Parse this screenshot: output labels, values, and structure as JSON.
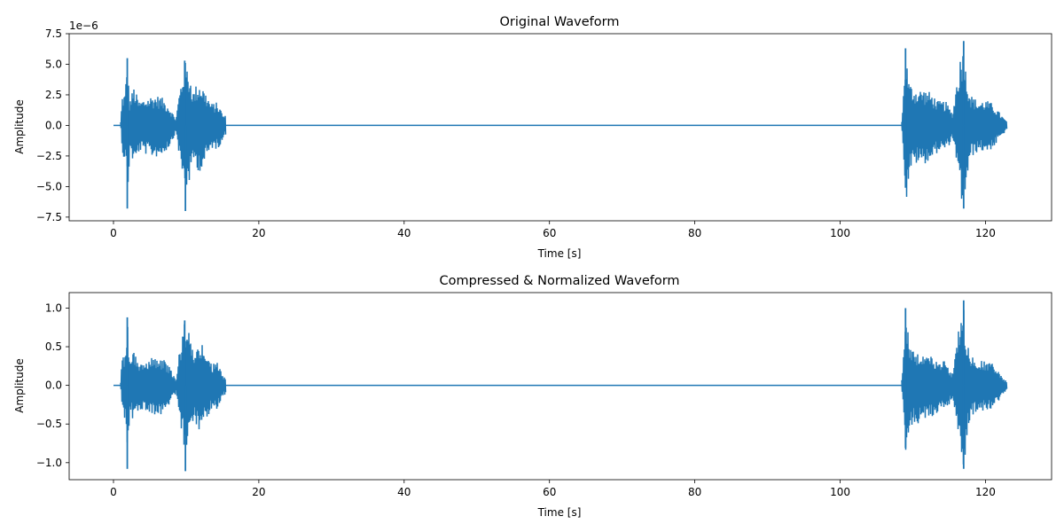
{
  "colors": {
    "series": "#1f77b4",
    "axis": "#000000",
    "background": "#ffffff"
  },
  "chart_data": [
    {
      "type": "line",
      "title": "Original Waveform",
      "xlabel": "Time [s]",
      "ylabel": "Amplitude",
      "y_offset_label": "1e−6",
      "xlim": [
        -6.1,
        129.1
      ],
      "ylim": [
        -7.8,
        7.5
      ],
      "xticks": [
        0,
        20,
        40,
        60,
        80,
        100,
        120
      ],
      "xtick_labels": [
        "0",
        "20",
        "40",
        "60",
        "80",
        "100",
        "120"
      ],
      "yticks": [
        -7.5,
        -5.0,
        -2.5,
        0.0,
        2.5,
        5.0,
        7.5
      ],
      "ytick_labels": [
        "−7.5",
        "−5.0",
        "−2.5",
        "0.0",
        "2.5",
        "5.0",
        "7.5"
      ],
      "grid": false,
      "series": [
        {
          "segments": [
            {
              "x_start": 0.0,
              "x_end": 1.0,
              "amplitude": 0.0
            },
            {
              "x_start": 1.0,
              "x_end": 15.3,
              "envelope": [
                [
                  1.0,
                  0.3
                ],
                [
                  1.2,
                  2.5
                ],
                [
                  1.6,
                  2.7
                ],
                [
                  1.9,
                  5.5
                ],
                [
                  2.2,
                  2.0
                ],
                [
                  2.8,
                  3.2
                ],
                [
                  3.5,
                  2.0
                ],
                [
                  4.5,
                  2.3
                ],
                [
                  5.5,
                  2.5
                ],
                [
                  6.5,
                  2.4
                ],
                [
                  7.5,
                  1.8
                ],
                [
                  8.6,
                  0.5
                ],
                [
                  9.0,
                  2.5
                ],
                [
                  9.5,
                  4.3
                ],
                [
                  9.8,
                  5.3
                ],
                [
                  10.5,
                  4.3
                ],
                [
                  11.0,
                  2.8
                ],
                [
                  11.5,
                  3.5
                ],
                [
                  12.0,
                  3.6
                ],
                [
                  12.7,
                  2.7
                ],
                [
                  13.5,
                  1.8
                ],
                [
                  14.3,
                  1.9
                ],
                [
                  15.2,
                  0.8
                ]
              ],
              "peaks": [
                [
                  1.9,
                  5.5
                ],
                [
                  1.9,
                  -6.8
                ],
                [
                  9.8,
                  5.3
                ],
                [
                  9.9,
                  -7.0
                ]
              ]
            },
            {
              "x_start": 15.3,
              "x_end": 108.5,
              "amplitude": 0.0
            },
            {
              "x_start": 108.5,
              "x_end": 122.8,
              "envelope": [
                [
                  108.5,
                  0.5
                ],
                [
                  108.8,
                  3.5
                ],
                [
                  109.0,
                  6.3
                ],
                [
                  109.5,
                  3.5
                ],
                [
                  110.5,
                  3.0
                ],
                [
                  111.5,
                  3.0
                ],
                [
                  112.5,
                  2.7
                ],
                [
                  113.5,
                  2.0
                ],
                [
                  114.5,
                  2.0
                ],
                [
                  115.5,
                  1.0
                ],
                [
                  116.0,
                  3.5
                ],
                [
                  116.5,
                  5.5
                ],
                [
                  117.0,
                  6.9
                ],
                [
                  117.3,
                  4.5
                ],
                [
                  118.0,
                  2.5
                ],
                [
                  119.0,
                  2.0
                ],
                [
                  120.0,
                  2.1
                ],
                [
                  121.0,
                  1.8
                ],
                [
                  122.0,
                  1.0
                ],
                [
                  122.8,
                  0.4
                ]
              ],
              "peaks": [
                [
                  109.0,
                  6.3
                ],
                [
                  109.0,
                  -5.1
                ],
                [
                  117.0,
                  6.9
                ],
                [
                  117.0,
                  -6.8
                ]
              ]
            },
            {
              "x_start": 122.8,
              "x_end": 123.0,
              "amplitude": 0.0
            }
          ]
        }
      ]
    },
    {
      "type": "line",
      "title": "Compressed & Normalized Waveform",
      "xlabel": "Time [s]",
      "ylabel": "Amplitude",
      "xlim": [
        -6.1,
        129.1
      ],
      "ylim": [
        -1.22,
        1.2
      ],
      "xticks": [
        0,
        20,
        40,
        60,
        80,
        100,
        120
      ],
      "xtick_labels": [
        "0",
        "20",
        "40",
        "60",
        "80",
        "100",
        "120"
      ],
      "yticks": [
        -1.0,
        -0.5,
        0.0,
        0.5,
        1.0
      ],
      "ytick_labels": [
        "−1.0",
        "−0.5",
        "0.0",
        "0.5",
        "1.0"
      ],
      "grid": false,
      "series": [
        {
          "segments": [
            {
              "x_start": 0.0,
              "x_end": 1.0,
              "amplitude": 0.0
            },
            {
              "x_start": 1.0,
              "x_end": 15.3,
              "envelope": [
                [
                  1.0,
                  0.05
                ],
                [
                  1.2,
                  0.4
                ],
                [
                  1.6,
                  0.42
                ],
                [
                  1.9,
                  0.88
                ],
                [
                  2.2,
                  0.3
                ],
                [
                  2.8,
                  0.5
                ],
                [
                  3.5,
                  0.3
                ],
                [
                  4.5,
                  0.36
                ],
                [
                  5.5,
                  0.38
                ],
                [
                  6.5,
                  0.37
                ],
                [
                  7.5,
                  0.28
                ],
                [
                  8.6,
                  0.08
                ],
                [
                  9.0,
                  0.4
                ],
                [
                  9.5,
                  0.68
                ],
                [
                  9.8,
                  0.84
                ],
                [
                  10.5,
                  0.68
                ],
                [
                  11.0,
                  0.44
                ],
                [
                  11.5,
                  0.55
                ],
                [
                  12.0,
                  0.57
                ],
                [
                  12.7,
                  0.42
                ],
                [
                  13.5,
                  0.28
                ],
                [
                  14.3,
                  0.3
                ],
                [
                  15.2,
                  0.12
                ]
              ],
              "peaks": [
                [
                  1.9,
                  0.88
                ],
                [
                  1.9,
                  -1.08
                ],
                [
                  9.8,
                  0.84
                ],
                [
                  9.9,
                  -1.11
                ]
              ]
            },
            {
              "x_start": 15.3,
              "x_end": 108.5,
              "amplitude": 0.0
            },
            {
              "x_start": 108.5,
              "x_end": 122.8,
              "envelope": [
                [
                  108.5,
                  0.08
                ],
                [
                  108.8,
                  0.55
                ],
                [
                  109.0,
                  1.0
                ],
                [
                  109.5,
                  0.55
                ],
                [
                  110.5,
                  0.47
                ],
                [
                  111.5,
                  0.47
                ],
                [
                  112.5,
                  0.42
                ],
                [
                  113.5,
                  0.32
                ],
                [
                  114.5,
                  0.32
                ],
                [
                  115.5,
                  0.16
                ],
                [
                  116.0,
                  0.55
                ],
                [
                  116.5,
                  0.87
                ],
                [
                  117.0,
                  1.1
                ],
                [
                  117.3,
                  0.7
                ],
                [
                  118.0,
                  0.4
                ],
                [
                  119.0,
                  0.32
                ],
                [
                  120.0,
                  0.33
                ],
                [
                  121.0,
                  0.28
                ],
                [
                  122.0,
                  0.16
                ],
                [
                  122.8,
                  0.06
                ]
              ],
              "peaks": [
                [
                  109.0,
                  1.0
                ],
                [
                  109.0,
                  -0.81
                ],
                [
                  117.0,
                  1.1
                ],
                [
                  117.0,
                  -1.08
                ]
              ]
            },
            {
              "x_start": 122.8,
              "x_end": 123.0,
              "amplitude": 0.0
            }
          ]
        }
      ]
    }
  ]
}
